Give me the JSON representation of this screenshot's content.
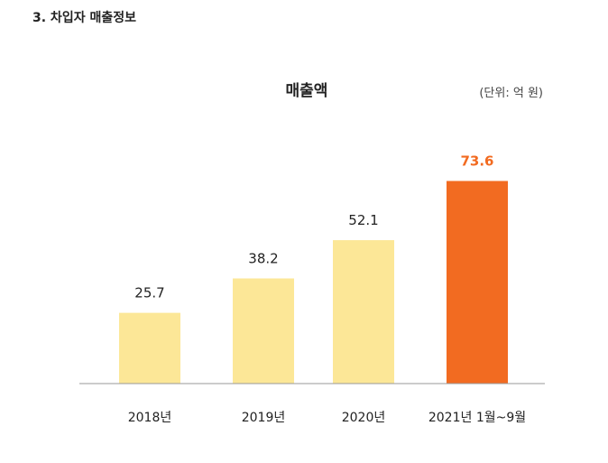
{
  "section": {
    "heading": "3. 차입자 매출정보"
  },
  "chart_data": {
    "type": "bar",
    "title": "매출액",
    "unit_note": "(단위: 억 원)",
    "categories": [
      "2018년",
      "2019년",
      "2020년",
      "2021년 1월~9월"
    ],
    "values": [
      25.7,
      38.2,
      52.1,
      73.6
    ],
    "data_labels": [
      "25.7",
      "38.2",
      "52.1",
      "73.6"
    ],
    "highlight_index": 3,
    "ylim": [
      0,
      100
    ],
    "grid": false,
    "legend": "none",
    "colors": {
      "bar": "#FCE797",
      "highlight_bar": "#F26B21",
      "label": "#222222",
      "highlight_label": "#F26B21",
      "axis": "#9a9a9a"
    }
  }
}
